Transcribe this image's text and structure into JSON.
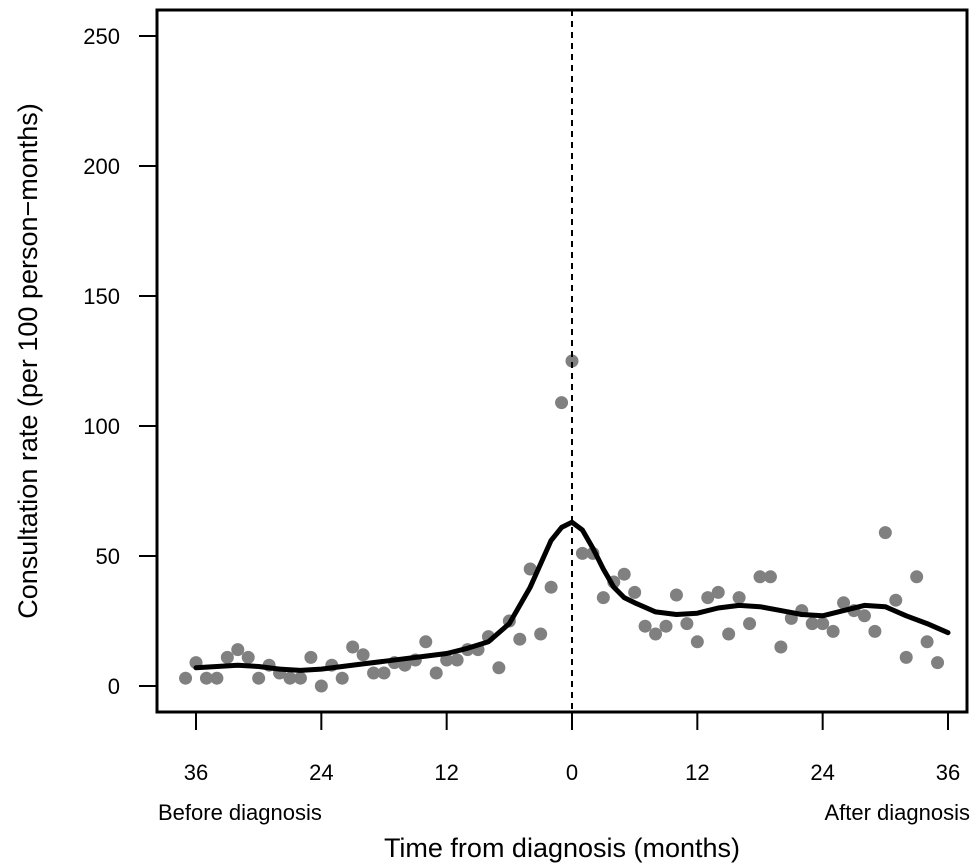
{
  "chart_data": {
    "type": "scatter",
    "title": "",
    "xlabel": "Time from diagnosis (months)",
    "ylabel": "Consultation rate (per 100 person−months)",
    "xlim": [
      -36,
      36
    ],
    "ylim": [
      0,
      250
    ],
    "x_ticks": [
      {
        "value": -36,
        "label": "36"
      },
      {
        "value": -24,
        "label": "24"
      },
      {
        "value": -12,
        "label": "12"
      },
      {
        "value": 0,
        "label": "0"
      },
      {
        "value": 12,
        "label": "12"
      },
      {
        "value": 24,
        "label": "24"
      },
      {
        "value": 36,
        "label": "36"
      }
    ],
    "y_ticks": [
      0,
      50,
      100,
      150,
      200,
      250
    ],
    "annotations": {
      "before": "Before diagnosis",
      "after": "After diagnosis"
    },
    "reference_line": {
      "x": 0,
      "style": "dashed"
    },
    "grid": false,
    "legend": "none",
    "colors": {
      "points": "#808080",
      "smooth": "#000000",
      "axes": "#000000"
    },
    "series": [
      {
        "kind": "points",
        "x": [
          -37,
          -36,
          -35,
          -34,
          -33,
          -32,
          -31,
          -30,
          -29,
          -28,
          -27,
          -26,
          -25,
          -24,
          -23,
          -22,
          -21,
          -20,
          -19,
          -18,
          -17,
          -16,
          -15,
          -14,
          -13,
          -12,
          -11,
          -10,
          -9,
          -8,
          -7,
          -6,
          -5,
          -4,
          -3,
          -2,
          -1,
          0,
          1,
          2,
          3,
          4,
          5,
          6,
          7,
          8,
          9,
          10,
          11,
          12,
          13,
          14,
          15,
          16,
          17,
          18,
          19,
          20,
          21,
          22,
          23,
          24,
          25,
          26,
          27,
          28,
          29,
          30,
          31,
          32,
          33,
          34,
          35
        ],
        "y": [
          3,
          9,
          3,
          3,
          11,
          14,
          11,
          3,
          8,
          5,
          3,
          3,
          11,
          0,
          8,
          3,
          15,
          12,
          5,
          5,
          9,
          8,
          10,
          17,
          5,
          10,
          10,
          14,
          14,
          19,
          7,
          25,
          18,
          45,
          20,
          38,
          109,
          125,
          51,
          51,
          34,
          40,
          43,
          36,
          23,
          20,
          23,
          35,
          24,
          17,
          34,
          36,
          20,
          34,
          24,
          42,
          42,
          15,
          26,
          29,
          24,
          24,
          21,
          32,
          29,
          27,
          21,
          59,
          33,
          11,
          42,
          17,
          9
        ]
      },
      {
        "kind": "smooth",
        "x": [
          -36,
          -34,
          -32,
          -30,
          -28,
          -26,
          -24,
          -22,
          -20,
          -18,
          -16,
          -14,
          -12,
          -10,
          -8,
          -6,
          -4,
          -2,
          -1,
          0,
          1,
          2,
          3,
          4,
          5,
          6,
          8,
          10,
          12,
          14,
          16,
          18,
          20,
          22,
          24,
          26,
          28,
          30,
          32,
          34,
          36
        ],
        "y": [
          7,
          7.5,
          8,
          7.5,
          6.5,
          6,
          6.5,
          7.5,
          8.5,
          9.5,
          10.5,
          11.5,
          12.5,
          14.5,
          17,
          24,
          38,
          56,
          61,
          63,
          60,
          53,
          45,
          38,
          34,
          32,
          28.5,
          27.5,
          28,
          30,
          31,
          30.5,
          29,
          27.5,
          27,
          29,
          31,
          30.5,
          27,
          24,
          20.5
        ]
      }
    ]
  }
}
